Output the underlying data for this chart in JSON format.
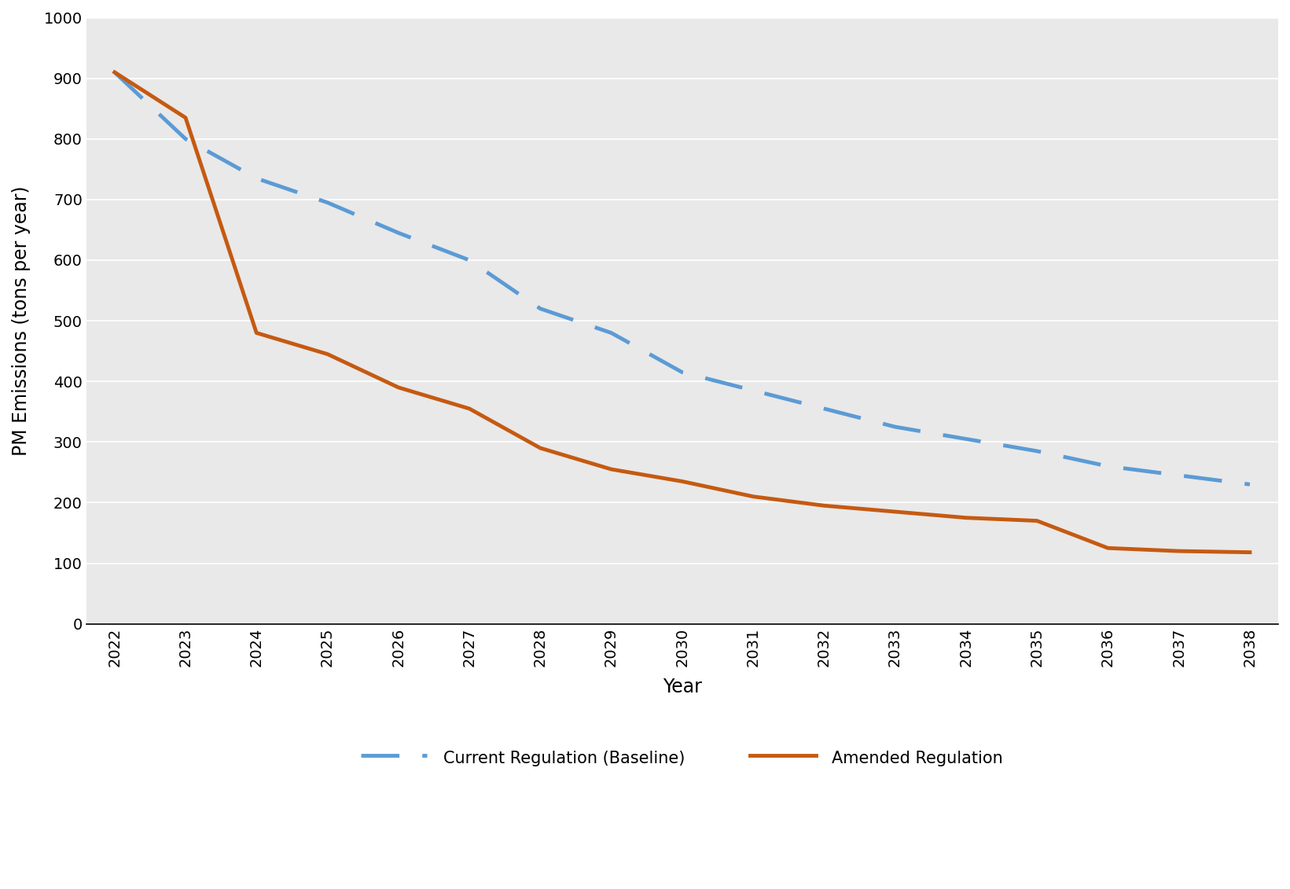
{
  "years": [
    2022,
    2023,
    2024,
    2025,
    2026,
    2027,
    2028,
    2029,
    2030,
    2031,
    2032,
    2033,
    2034,
    2035,
    2036,
    2037,
    2038
  ],
  "baseline": [
    910,
    800,
    735,
    695,
    645,
    600,
    520,
    480,
    415,
    385,
    355,
    325,
    305,
    285,
    260,
    245,
    230
  ],
  "amended": [
    910,
    835,
    480,
    445,
    390,
    355,
    290,
    255,
    235,
    210,
    195,
    185,
    175,
    170,
    125,
    120,
    118
  ],
  "baseline_color": "#5B9BD5",
  "amended_color": "#C55A11",
  "baseline_label": "Current Regulation (Baseline)",
  "amended_label": "Amended Regulation",
  "ylabel": "PM Emissions (tons per year)",
  "xlabel": "Year",
  "ylim": [
    0,
    1000
  ],
  "yticks": [
    0,
    100,
    200,
    300,
    400,
    500,
    600,
    700,
    800,
    900,
    1000
  ],
  "plot_bg_color": "#e9e9e9",
  "fig_bg_color": "#ffffff",
  "grid_color": "#ffffff",
  "line_width": 3.5,
  "legend_fontsize": 15,
  "axis_label_fontsize": 17,
  "tick_fontsize": 14
}
